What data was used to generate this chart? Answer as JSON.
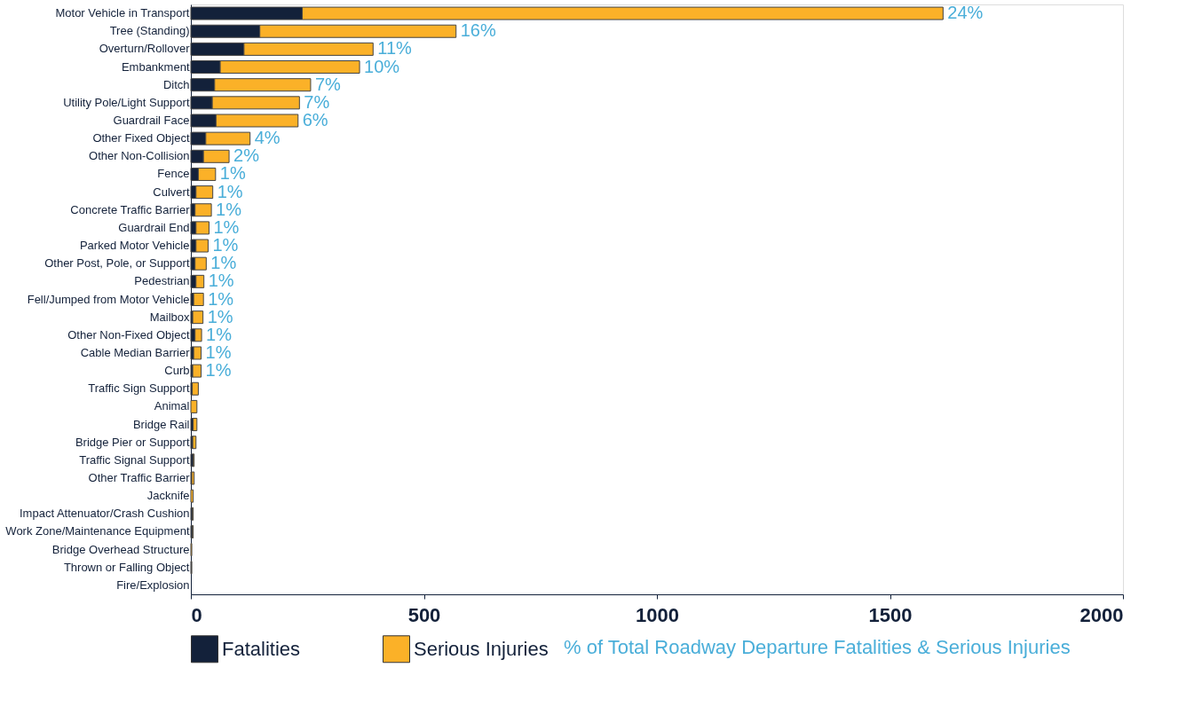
{
  "chart_data": {
    "type": "bar",
    "orientation": "horizontal",
    "stacked": true,
    "categories": [
      "Motor Vehicle in Transport",
      "Tree (Standing)",
      "Overturn/Rollover",
      "Embankment",
      "Ditch",
      "Utility Pole/Light Support",
      "Guardrail Face",
      "Other Fixed Object",
      "Other Non-Collision",
      "Fence",
      "Culvert",
      "Concrete Traffic Barrier",
      "Guardrail End",
      "Parked Motor Vehicle",
      "Other Post, Pole, or Support",
      "Pedestrian",
      "Fell/Jumped from Motor Vehicle",
      "Mailbox",
      "Other Non-Fixed Object",
      "Cable Median Barrier",
      "Curb",
      "Traffic Sign Support",
      "Animal",
      "Bridge Rail",
      "Bridge Pier or Support",
      "Traffic Signal Support",
      "Other Traffic Barrier",
      "Jacknife",
      "Impact Attenuator/Crash Cushion",
      "Work Zone/Maintenance Equipment",
      "Bridge Overhead Structure",
      "Thrown or Falling Object",
      "Fire/Explosion"
    ],
    "series": [
      {
        "name": "Fatalities",
        "color": "#13213a",
        "values": [
          239,
          148,
          114,
          63,
          51,
          46,
          54,
          32,
          27,
          16,
          11,
          9,
          11,
          11,
          9,
          11,
          6,
          4,
          9,
          6,
          4,
          3,
          null,
          5,
          4,
          5,
          2,
          null,
          3,
          3,
          null,
          1,
          0
        ]
      },
      {
        "name": "Serious Injuries",
        "color": "#fbb128",
        "values": [
          1375,
          421,
          277,
          299,
          206,
          187,
          176,
          95,
          55,
          37,
          36,
          35,
          28,
          26,
          24,
          17,
          21,
          22,
          14,
          16,
          18,
          13,
          13,
          8,
          7,
          2,
          5,
          5,
          2,
          2,
          2,
          1,
          0
        ]
      }
    ],
    "xlim": [
      0,
      2000
    ],
    "xticks": [
      0,
      500,
      1000,
      1500,
      2000
    ],
    "grid": false,
    "legend": "bottom",
    "annotations": [
      "% of Total Roadway Departure Fatalities & Serious Injuries",
      {
        "text": "24%",
        "x": 1614,
        "y": "Motor Vehicle in Transport"
      },
      {
        "text": "16%",
        "x": 569,
        "y": "Tree (Standing)"
      },
      {
        "text": "11%",
        "x": 391,
        "y": "Overturn/Rollover"
      },
      {
        "text": "10%",
        "x": 362,
        "y": "Embankment"
      },
      {
        "text": "7%",
        "x": 257,
        "y": "Ditch"
      },
      {
        "text": "7%",
        "x": 233,
        "y": "Utility Pole/Light Support"
      },
      {
        "text": "6%",
        "x": 230,
        "y": "Guardrail Face"
      },
      {
        "text": "4%",
        "x": 127,
        "y": "Other Fixed Object"
      },
      {
        "text": "2%",
        "x": 82,
        "y": "Other Non-Collision"
      },
      {
        "text": "1%",
        "x": 53,
        "y": "Fence"
      },
      {
        "text": "1%",
        "x": 47,
        "y": "Culvert"
      },
      {
        "text": "1%",
        "x": 44,
        "y": "Concrete Traffic Barrier"
      },
      {
        "text": "1%",
        "x": 39,
        "y": "Guardrail End"
      },
      {
        "text": "1%",
        "x": 37,
        "y": "Parked Motor Vehicle"
      },
      {
        "text": "1%",
        "x": 33,
        "y": "Other Post, Pole, or Support"
      },
      {
        "text": "1%",
        "x": 28,
        "y": "Pedestrian"
      },
      {
        "text": "1%",
        "x": 27,
        "y": "Fell/Jumped from Motor Vehicle"
      },
      {
        "text": "1%",
        "x": 26,
        "y": "Mailbox"
      },
      {
        "text": "1%",
        "x": 23,
        "y": "Other Non-Fixed Object"
      },
      {
        "text": "1%",
        "x": 22,
        "y": "Cable Median Barrier"
      },
      {
        "text": "1%",
        "x": 22,
        "y": "Curb"
      }
    ]
  }
}
